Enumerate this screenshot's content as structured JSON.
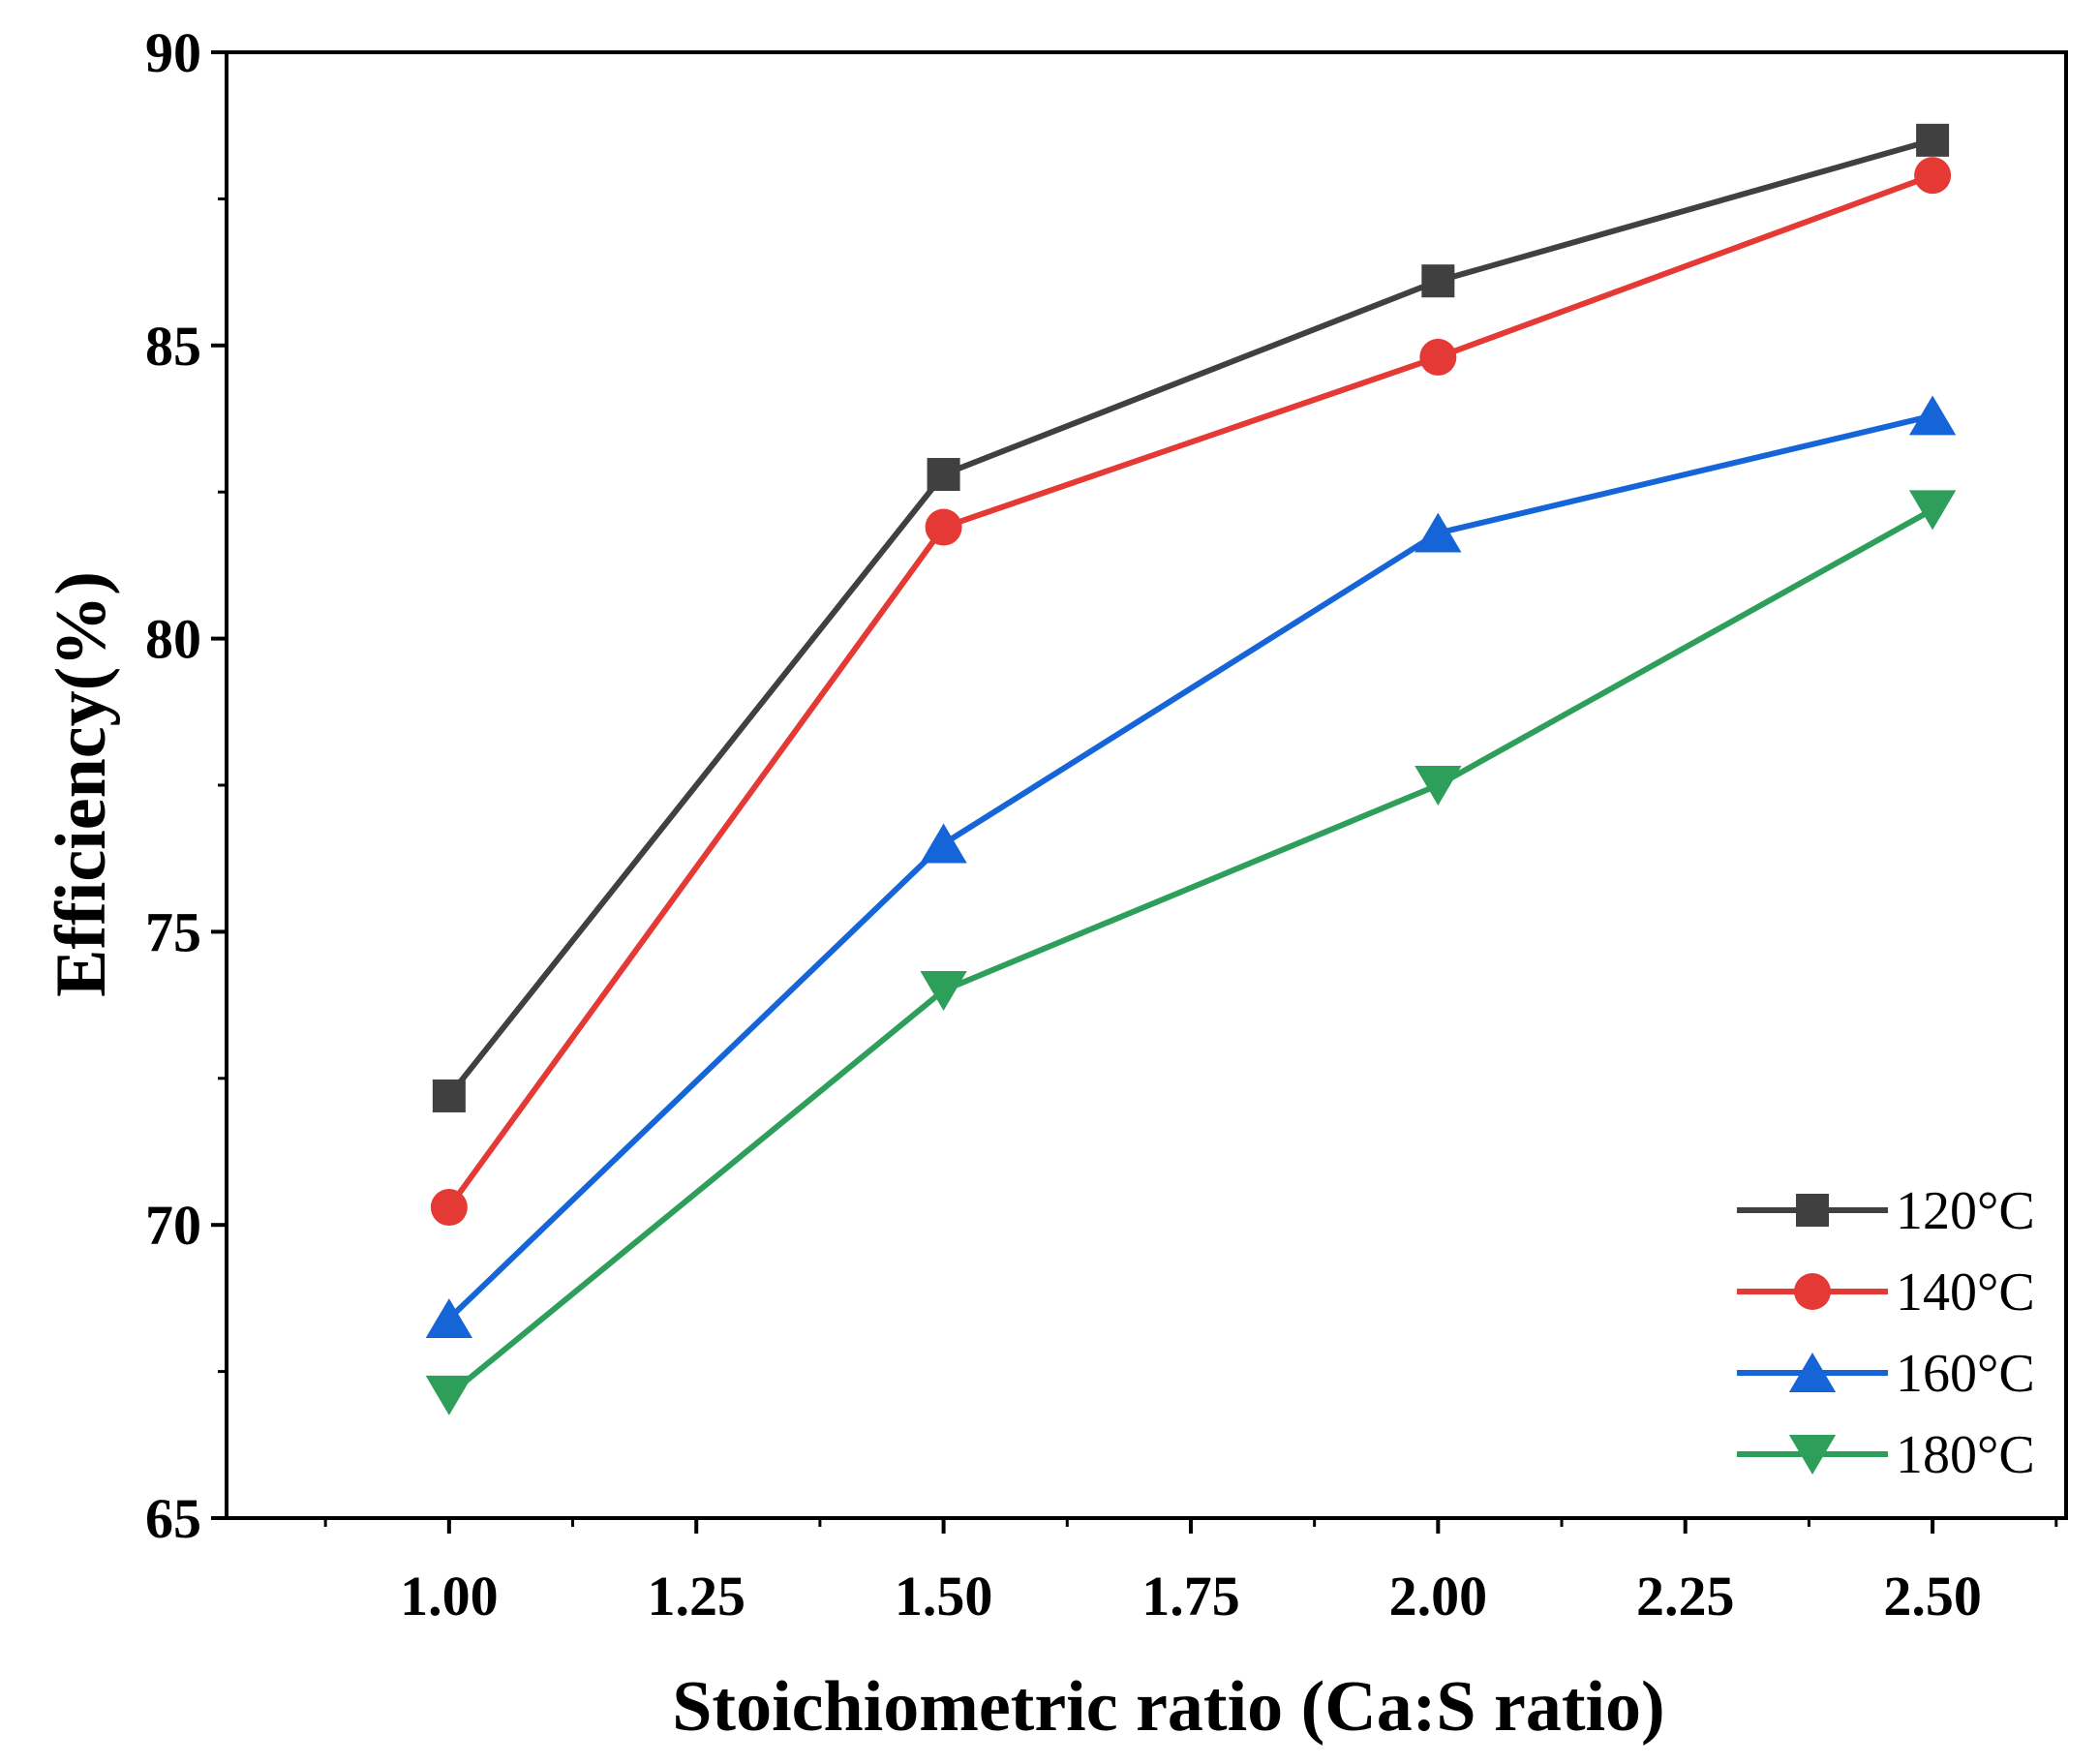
{
  "chart_data": {
    "type": "line",
    "title": "",
    "xlabel": "Stoichiometric ratio (Ca:S ratio)",
    "ylabel": "Efficiency(%)",
    "xlim": [
      0.775,
      2.635
    ],
    "ylim": [
      65,
      90
    ],
    "x_ticks": [
      1.0,
      1.25,
      1.5,
      1.75,
      2.0,
      2.25,
      2.5
    ],
    "x_tick_labels": [
      "1.00",
      "1.25",
      "1.50",
      "1.75",
      "2.00",
      "2.25",
      "2.50"
    ],
    "y_ticks": [
      65,
      70,
      75,
      80,
      85,
      90
    ],
    "y_tick_labels": [
      "65",
      "70",
      "75",
      "80",
      "85",
      "90"
    ],
    "grid": false,
    "legend_position": "bottom-right",
    "x": [
      1.0,
      1.5,
      2.0,
      2.5
    ],
    "series": [
      {
        "name": "120°C",
        "marker": "square",
        "color": "#404040",
        "values": [
          72.2,
          82.8,
          86.1,
          88.5
        ]
      },
      {
        "name": "140°C",
        "marker": "circle",
        "color": "#e53935",
        "values": [
          70.3,
          81.9,
          84.8,
          87.9
        ]
      },
      {
        "name": "160°C",
        "marker": "triangle-up",
        "color": "#1565d8",
        "values": [
          68.4,
          76.5,
          81.8,
          83.8
        ]
      },
      {
        "name": "180°C",
        "marker": "triangle-down",
        "color": "#2e9e5b",
        "values": [
          67.1,
          74.0,
          77.5,
          82.2
        ]
      }
    ]
  }
}
